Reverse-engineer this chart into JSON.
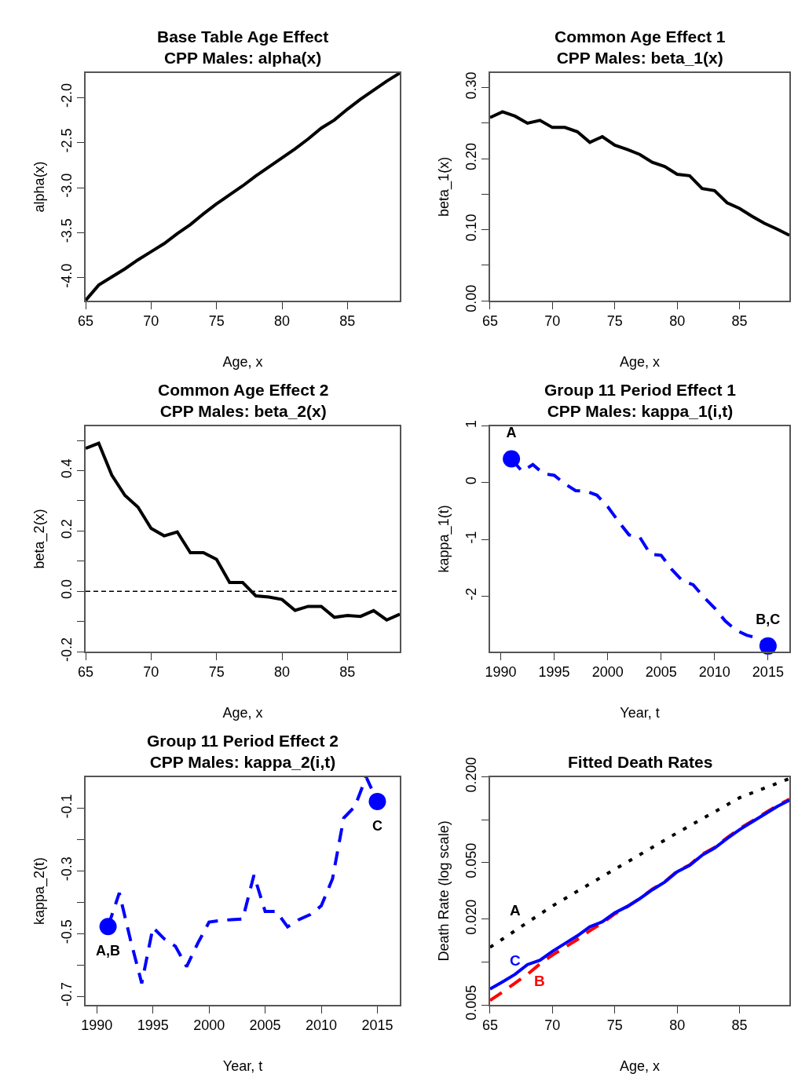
{
  "chart_data": [
    {
      "type": "line",
      "title": "Base Table Age Effect\nCPP Males: alpha(x)",
      "xlabel": "Age, x",
      "ylabel": "alpha(x)",
      "x": [
        65,
        66,
        67,
        68,
        69,
        70,
        71,
        72,
        73,
        74,
        75,
        76,
        77,
        78,
        79,
        80,
        81,
        82,
        83,
        84,
        85,
        86,
        87,
        88,
        89
      ],
      "series": [
        {
          "color": "#000000",
          "line_style": "solid",
          "values": [
            -4.25,
            -4.08,
            -3.99,
            -3.9,
            -3.8,
            -3.71,
            -3.62,
            -3.51,
            -3.41,
            -3.29,
            -3.18,
            -3.08,
            -2.98,
            -2.87,
            -2.77,
            -2.67,
            -2.57,
            -2.46,
            -2.34,
            -2.25,
            -2.13,
            -2.02,
            -1.92,
            -1.82,
            -1.73
          ]
        }
      ],
      "xlim": [
        65,
        89
      ],
      "xticks": [
        65,
        70,
        75,
        80,
        85
      ],
      "ylim": [
        -4.253,
        -1.727
      ],
      "yticks": [
        {
          "value": -4,
          "label": "-4.0"
        },
        {
          "value": -3.5,
          "label": "-3.5"
        },
        {
          "value": -3,
          "label": "-3.0"
        },
        {
          "value": -2.5,
          "label": "-2.5"
        },
        {
          "value": -2,
          "label": "-2.0"
        }
      ]
    },
    {
      "type": "line",
      "title": "Common Age Effect 1\nCPP Males: beta_1(x)",
      "xlabel": "Age, x",
      "ylabel": "beta_1(x)",
      "x": [
        65,
        66,
        67,
        68,
        69,
        70,
        71,
        72,
        73,
        74,
        75,
        76,
        77,
        78,
        79,
        80,
        81,
        82,
        83,
        84,
        85,
        86,
        87,
        88,
        89
      ],
      "series": [
        {
          "color": "#000000",
          "line_style": "solid",
          "values": [
            0.258,
            0.266,
            0.26,
            0.25,
            0.254,
            0.244,
            0.244,
            0.238,
            0.223,
            0.231,
            0.219,
            0.213,
            0.206,
            0.195,
            0.189,
            0.178,
            0.176,
            0.158,
            0.155,
            0.138,
            0.13,
            0.119,
            0.109,
            0.101,
            0.092
          ]
        }
      ],
      "xlim": [
        65,
        89
      ],
      "xticks": [
        65,
        70,
        75,
        80,
        85
      ],
      "ylim": [
        0,
        0.321
      ],
      "yticks": [
        {
          "value": 0,
          "label": "0.00"
        },
        {
          "value": 0.05,
          "label": null
        },
        {
          "value": 0.1,
          "label": "0.10"
        },
        {
          "value": 0.15,
          "label": null
        },
        {
          "value": 0.2,
          "label": "0.20"
        },
        {
          "value": 0.25,
          "label": null
        },
        {
          "value": 0.3,
          "label": "0.30"
        }
      ]
    },
    {
      "type": "line",
      "title": "Common Age Effect 2\nCPP Males: beta_2(x)",
      "xlabel": "Age, x",
      "ylabel": "beta_2(x)",
      "x": [
        65,
        66,
        67,
        68,
        69,
        70,
        71,
        72,
        73,
        74,
        75,
        76,
        77,
        78,
        79,
        80,
        81,
        82,
        83,
        84,
        85,
        86,
        87,
        88,
        89
      ],
      "series": [
        {
          "color": "#000000",
          "line_style": "solid",
          "values": [
            0.474,
            0.491,
            0.385,
            0.318,
            0.279,
            0.209,
            0.184,
            0.197,
            0.128,
            0.128,
            0.106,
            0.029,
            0.029,
            -0.015,
            -0.019,
            -0.027,
            -0.063,
            -0.05,
            -0.05,
            -0.086,
            -0.08,
            -0.083,
            -0.064,
            -0.095,
            -0.076
          ]
        }
      ],
      "ref_lines": [
        {
          "axis": "y",
          "value": 0,
          "color": "#000000",
          "line_style": "dashed"
        }
      ],
      "xlim": [
        65,
        89
      ],
      "xticks": [
        65,
        70,
        75,
        80,
        85
      ],
      "ylim": [
        -0.2,
        0.548
      ],
      "yticks": [
        {
          "value": -0.2,
          "label": "-0.2"
        },
        {
          "value": -0.1,
          "label": null
        },
        {
          "value": 0,
          "label": "0.0"
        },
        {
          "value": 0.1,
          "label": null
        },
        {
          "value": 0.2,
          "label": "0.2"
        },
        {
          "value": 0.3,
          "label": null
        },
        {
          "value": 0.4,
          "label": "0.4"
        },
        {
          "value": 0.5,
          "label": null
        }
      ]
    },
    {
      "type": "line",
      "title": "Group 11 Period Effect 1\nCPP Males: kappa_1(i,t)",
      "xlabel": "Year, t",
      "ylabel": "kappa_1(t)",
      "x": [
        1991,
        1992,
        1993,
        1994,
        1995,
        1996,
        1997,
        1998,
        1999,
        2000,
        2001,
        2002,
        2003,
        2004,
        2005,
        2006,
        2007,
        2008,
        2009,
        2010,
        2011,
        2012,
        2013,
        2014,
        2015
      ],
      "series": [
        {
          "color": "#0000ff",
          "line_style": "dashed",
          "values": [
            0.42,
            0.2,
            0.32,
            0.16,
            0.13,
            -0.02,
            -0.14,
            -0.15,
            -0.22,
            -0.42,
            -0.68,
            -0.92,
            -0.96,
            -1.26,
            -1.28,
            -1.53,
            -1.73,
            -1.8,
            -2.02,
            -2.21,
            -2.44,
            -2.6,
            -2.69,
            -2.74,
            -2.88
          ]
        },
        {
          "type": "scatter",
          "color": "#0000ff",
          "marker": "circle",
          "values": [
            0.42,
            null,
            null,
            null,
            null,
            null,
            null,
            null,
            null,
            null,
            null,
            null,
            null,
            null,
            null,
            null,
            null,
            null,
            null,
            null,
            null,
            null,
            null,
            null,
            -2.88
          ],
          "value_labels": [
            "A",
            null,
            null,
            null,
            null,
            null,
            null,
            null,
            null,
            null,
            null,
            null,
            null,
            null,
            null,
            null,
            null,
            null,
            null,
            null,
            null,
            null,
            null,
            null,
            "B,C"
          ]
        }
      ],
      "xlim": [
        1989,
        2017
      ],
      "xticks": [
        1990,
        1995,
        2000,
        2005,
        2010,
        2015
      ],
      "ylim": [
        -2.98,
        1
      ],
      "yticks": [
        -2,
        -1,
        0,
        1
      ]
    },
    {
      "type": "line",
      "title": "Group 11 Period Effect 2\nCPP Males: kappa_2(i,t)",
      "xlabel": "Year, t",
      "ylabel": "kappa_2(t)",
      "x": [
        1991,
        1992,
        1993,
        1994,
        1995,
        1996,
        1997,
        1998,
        1999,
        2000,
        2001,
        2002,
        2003,
        2004,
        2005,
        2006,
        2007,
        2008,
        2009,
        2010,
        2011,
        2012,
        2013,
        2014,
        2015
      ],
      "series": [
        {
          "color": "#0000ff",
          "line_style": "dashed",
          "values": [
            -0.477,
            -0.37,
            -0.52,
            -0.658,
            -0.48,
            -0.516,
            -0.54,
            -0.605,
            -0.53,
            -0.463,
            -0.458,
            -0.455,
            -0.453,
            -0.313,
            -0.429,
            -0.429,
            -0.478,
            -0.455,
            -0.439,
            -0.411,
            -0.325,
            -0.131,
            -0.094,
            0.0,
            -0.078
          ]
        },
        {
          "type": "scatter",
          "color": "#0000ff",
          "marker": "circle",
          "values": [
            -0.477,
            null,
            null,
            null,
            null,
            null,
            null,
            null,
            null,
            null,
            null,
            null,
            null,
            null,
            null,
            null,
            null,
            null,
            null,
            null,
            null,
            null,
            null,
            null,
            -0.078
          ],
          "value_labels": [
            "A,B",
            null,
            null,
            null,
            null,
            null,
            null,
            null,
            null,
            null,
            null,
            null,
            null,
            null,
            null,
            null,
            null,
            null,
            null,
            null,
            null,
            null,
            null,
            null,
            "C"
          ]
        }
      ],
      "xlim": [
        1989,
        2017
      ],
      "xticks": [
        1990,
        1995,
        2000,
        2005,
        2010,
        2015
      ],
      "ylim": [
        -0.727,
        0
      ],
      "yticks": [
        {
          "value": -0.7,
          "label": "-0.7"
        },
        {
          "value": -0.6,
          "label": null
        },
        {
          "value": -0.5,
          "label": "-0.5"
        },
        {
          "value": -0.4,
          "label": null
        },
        {
          "value": -0.3,
          "label": "-0.3"
        },
        {
          "value": -0.2,
          "label": null
        },
        {
          "value": -0.1,
          "label": "-0.1"
        }
      ]
    },
    {
      "type": "line",
      "title": "Fitted Death Rates",
      "xlabel": "Age, x",
      "ylabel": "Death Rate (log scale)",
      "log": true,
      "x": [
        65,
        66,
        67,
        68,
        69,
        70,
        71,
        72,
        73,
        74,
        75,
        76,
        77,
        78,
        79,
        80,
        81,
        82,
        83,
        84,
        85,
        86,
        87,
        88,
        89
      ],
      "series": [
        {
          "name": "A",
          "color": "#000000",
          "line_style": "dotted",
          "values": [
            0.0127,
            0.0145,
            0.0166,
            0.019,
            0.0217,
            0.0248,
            0.0279,
            0.0315,
            0.0354,
            0.0399,
            0.0449,
            0.0505,
            0.0568,
            0.064,
            0.072,
            0.081,
            0.0907,
            0.1016,
            0.1138,
            0.1275,
            0.143,
            0.1546,
            0.1671,
            0.1806,
            0.195
          ]
        },
        {
          "name": "B",
          "color": "#ff0000",
          "line_style": "dashed",
          "values": [
            0.00537,
            0.00615,
            0.00711,
            0.0082,
            0.0097,
            0.0112,
            0.0127,
            0.0144,
            0.0166,
            0.0188,
            0.0218,
            0.0245,
            0.028,
            0.0325,
            0.0367,
            0.0436,
            0.0482,
            0.0572,
            0.064,
            0.0748,
            0.0866,
            0.098,
            0.111,
            0.1257,
            0.1395
          ]
        },
        {
          "name": "C",
          "color": "#0000ff",
          "line_style": "solid",
          "values": [
            0.00646,
            0.00726,
            0.0082,
            0.0096,
            0.0103,
            0.0119,
            0.0135,
            0.0153,
            0.0177,
            0.0192,
            0.0222,
            0.0246,
            0.0279,
            0.0322,
            0.0365,
            0.0431,
            0.0478,
            0.0564,
            0.0633,
            0.0738,
            0.0853,
            0.0966,
            0.1094,
            0.1239,
            0.1374
          ]
        }
      ],
      "xlim": [
        65,
        89
      ],
      "xticks": [
        65,
        70,
        75,
        80,
        85
      ],
      "ylim": [
        0.005,
        0.2
      ],
      "yticks": [
        {
          "value": 0.005,
          "label": "0.005"
        },
        {
          "value": 0.01,
          "label": null
        },
        {
          "value": 0.02,
          "label": "0.020"
        },
        {
          "value": 0.05,
          "label": "0.050"
        },
        {
          "value": 0.1,
          "label": null
        },
        {
          "value": 0.2,
          "label": "0.200"
        }
      ]
    }
  ]
}
